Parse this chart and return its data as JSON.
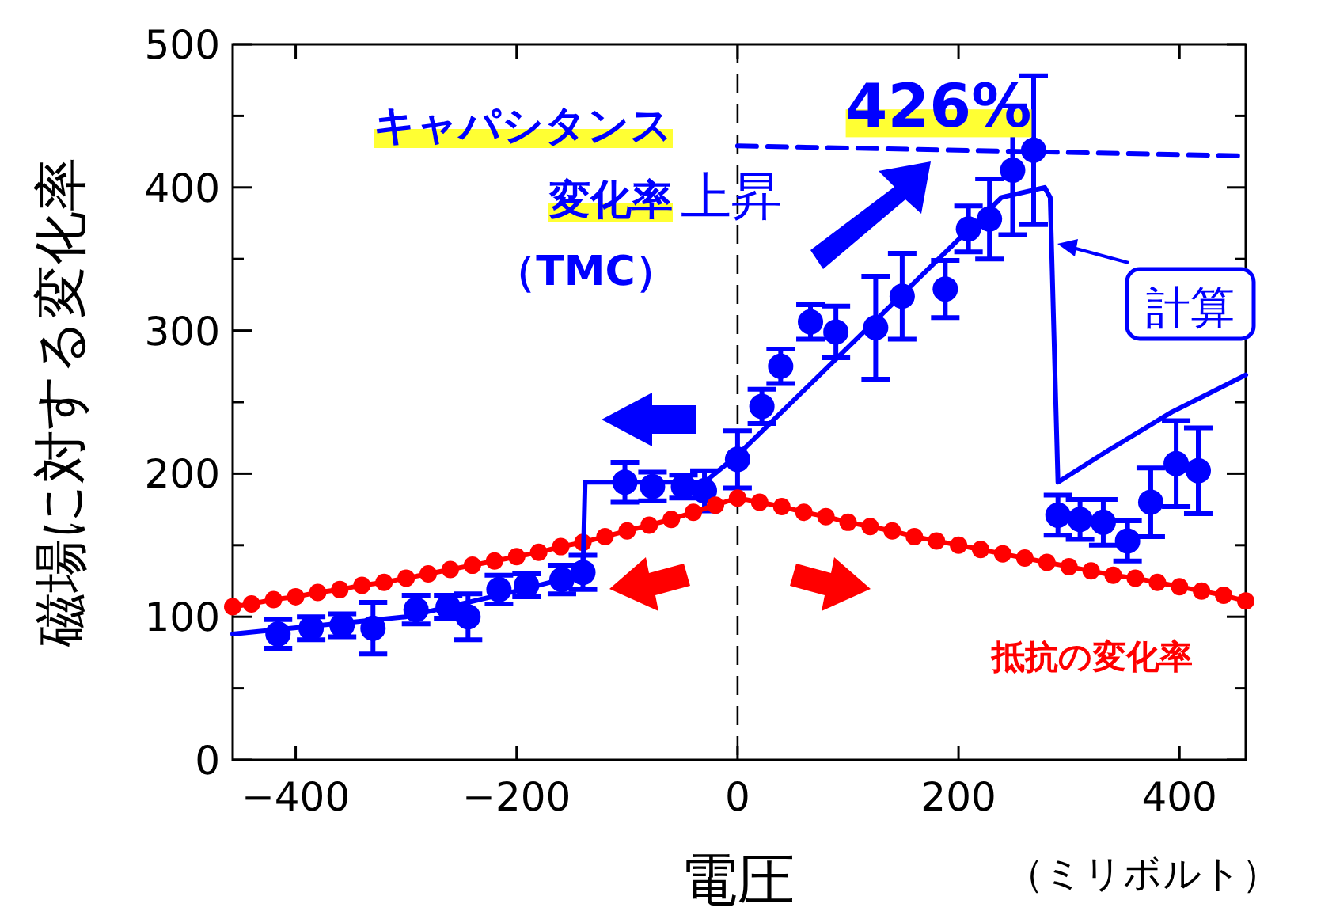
{
  "chart_data": {
    "type": "scatter",
    "xlabel": "電圧",
    "ylabel": "磁場に対する変化率",
    "xlim": [
      -457,
      460
    ],
    "ylim": [
      0,
      500
    ],
    "xticks": [
      -400,
      -200,
      0,
      200,
      400
    ],
    "yticks": [
      0,
      {
        "value": 50,
        "label": null
      },
      100,
      {
        "value": 150,
        "label": null
      },
      200,
      {
        "value": 250,
        "label": null
      },
      300,
      {
        "value": 350,
        "label": null
      },
      400,
      {
        "value": 450,
        "label": null
      },
      500
    ],
    "grid": false,
    "series": [
      {
        "name": "キャパシタンス変化率（TMC）",
        "color": "#0000ff",
        "marker": "circle",
        "x": [
          -416,
          -386,
          -358,
          -330,
          -291,
          -262,
          -244,
          -216,
          -191,
          -159,
          -140,
          -102,
          -77,
          -49,
          -30,
          0,
          22,
          39,
          66,
          89,
          125,
          149,
          188,
          209,
          228,
          249,
          268,
          290,
          310,
          331,
          353,
          374,
          397,
          417
        ],
        "values": [
          88,
          92,
          94,
          92,
          105,
          107,
          100,
          119,
          122,
          126,
          131,
          194,
          191,
          191,
          188,
          210,
          247,
          275,
          306,
          299,
          302,
          324,
          329,
          371,
          378,
          412,
          426,
          171,
          168,
          166,
          153,
          180,
          207,
          202
        ],
        "errors": [
          10,
          8,
          8,
          18,
          10,
          8,
          16,
          10,
          8,
          10,
          12,
          14,
          10,
          8,
          14,
          20,
          12,
          12,
          12,
          18,
          36,
          30,
          20,
          16,
          28,
          45,
          52,
          14,
          14,
          16,
          14,
          24,
          30,
          30
        ]
      },
      {
        "name": "抵抗の変化率",
        "type": "line",
        "color": "#ff0000",
        "marker": "circle",
        "x": [
          -457,
          -440,
          -420,
          -400,
          -380,
          -360,
          -340,
          -320,
          -300,
          -280,
          -260,
          -240,
          -220,
          -200,
          -180,
          -160,
          -140,
          -120,
          -100,
          -80,
          -60,
          -40,
          -20,
          0,
          20,
          40,
          60,
          80,
          100,
          120,
          140,
          160,
          180,
          200,
          220,
          240,
          260,
          280,
          300,
          320,
          340,
          360,
          380,
          400,
          420,
          440,
          460
        ],
        "values": [
          107,
          109,
          112,
          114,
          117,
          119,
          122,
          124,
          127,
          130,
          133,
          136,
          139,
          142,
          145,
          149,
          152,
          156,
          160,
          164,
          168,
          173,
          178,
          183,
          180,
          177,
          173,
          170,
          166,
          163,
          160,
          156,
          153,
          150,
          147,
          144,
          141,
          138,
          135,
          132,
          129,
          127,
          124,
          121,
          118,
          115,
          111
        ]
      },
      {
        "name": "計算",
        "type": "line",
        "color": "#0000ff",
        "marker": "none",
        "x": [
          -457,
          -300,
          -200,
          -150,
          -140,
          -138,
          -30,
          0,
          239,
          278,
          283,
          290,
          335,
          393,
          460
        ],
        "values": [
          88,
          100,
          118,
          128,
          131,
          194,
          194,
          213,
          393,
          400,
          393,
          194,
          216,
          243,
          269
        ]
      },
      {
        "type": "line",
        "color": "#0000ff",
        "marker": "none",
        "line_style": "dashed",
        "x": [
          0,
          460
        ],
        "values": [
          429,
          422
        ]
      }
    ],
    "ref_lines": [
      {
        "axis": "x",
        "value": 0,
        "color": "#000000",
        "line_style": "dashed"
      }
    ],
    "annotations": [
      "上昇",
      {
        "text": "426%",
        "x": 268,
        "y": 426
      },
      "（ミリボルト）"
    ]
  }
}
